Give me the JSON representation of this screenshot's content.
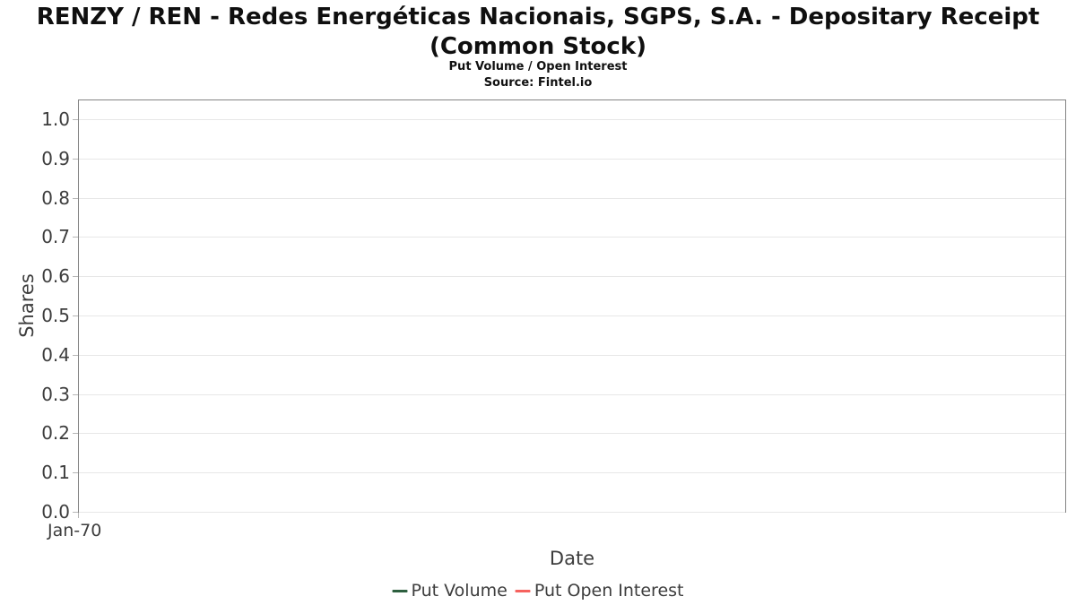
{
  "chart_data": {
    "type": "line",
    "title": "RENZY / REN - Redes Energéticas Nacionais, SGPS, S.A. - Depositary Receipt (Common Stock)",
    "title_lines": [
      "RENZY / REN - Redes Energéticas Nacionais, SGPS, S.A. - Depositary Receipt",
      "(Common Stock)"
    ],
    "subtitle": "Put Volume / Open Interest",
    "source": "Source: Fintel.io",
    "xlabel": "Date",
    "ylabel": "Shares",
    "ylim": [
      0.0,
      1.05
    ],
    "yticks": [
      "1.0",
      "0.9",
      "0.8",
      "0.7",
      "0.6",
      "0.5",
      "0.4",
      "0.3",
      "0.2",
      "0.1",
      "0.0"
    ],
    "xticks": [
      "Jan-70"
    ],
    "grid": true,
    "legend_position": "bottom",
    "series": [
      {
        "name": "Put Volume",
        "color": "#2d5f3f",
        "x": [],
        "values": []
      },
      {
        "name": "Put Open Interest",
        "color": "#f6625e",
        "x": [],
        "values": []
      }
    ],
    "colors": {
      "plot_border": "#848484",
      "gridline": "#e7e7e7",
      "tick_text": "#3d3d3d",
      "title_text": "#0f0f0f"
    }
  }
}
